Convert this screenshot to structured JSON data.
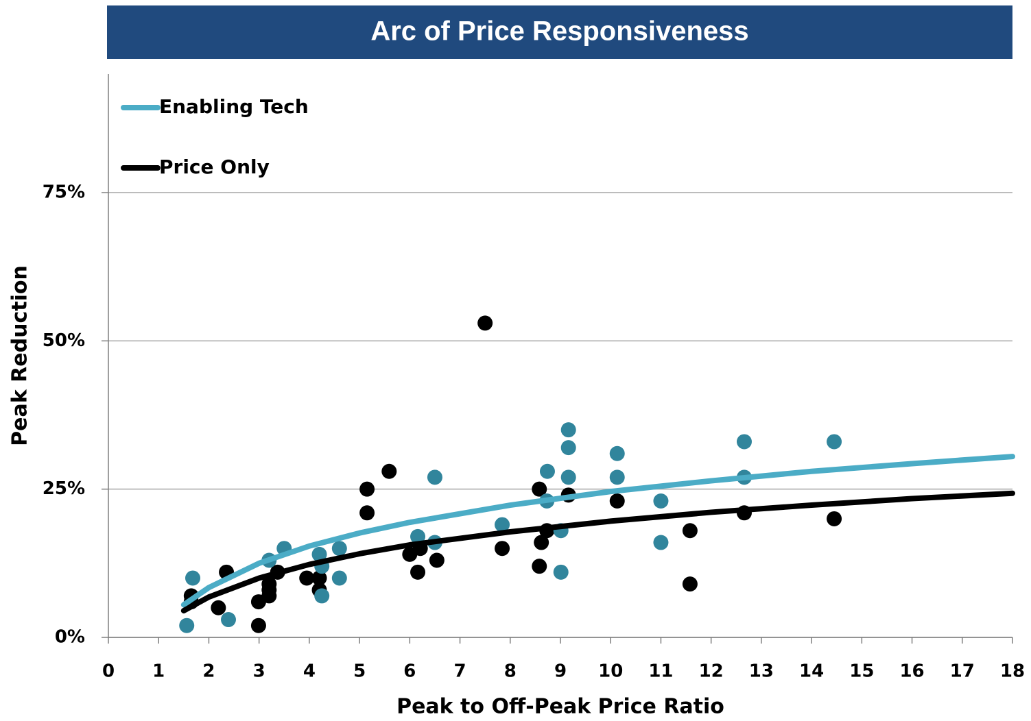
{
  "chart_data": {
    "type": "scatter",
    "title": "Arc of Price Responsiveness",
    "x_label": "Peak to Off-Peak Price Ratio",
    "y_label": "Peak Reduction",
    "xlim": [
      0,
      18
    ],
    "xticks": [
      0,
      1,
      2,
      3,
      4,
      5,
      6,
      7,
      8,
      9,
      10,
      11,
      12,
      13,
      14,
      15,
      16,
      17,
      18
    ],
    "ylim": [
      0,
      95
    ],
    "yticks": [
      {
        "value": 0,
        "label": "0%"
      },
      {
        "value": 25,
        "label": "25%"
      },
      {
        "value": 50,
        "label": "50%"
      },
      {
        "value": 75,
        "label": "75%"
      }
    ],
    "grid": true,
    "legend": "upper left",
    "series": [
      {
        "color": "#000000",
        "x": [
          1.65,
          1.65,
          2.19,
          2.35,
          2.99,
          2.99,
          3.2,
          3.2,
          3.2,
          3.37,
          3.95,
          4.2,
          4.2,
          5.15,
          5.15,
          5.59,
          6.0,
          6.21,
          6.16,
          6.54,
          7.5,
          7.84,
          8.58,
          8.62,
          8.58,
          8.73,
          9.16,
          10.13,
          11.58,
          11.58,
          12.66,
          14.45
        ],
        "y": [
          7,
          6,
          5,
          11,
          6,
          2,
          9,
          8,
          7,
          11,
          10,
          10,
          8,
          25,
          21,
          28,
          14,
          15,
          11,
          13,
          53,
          15,
          25,
          16,
          12,
          18,
          24,
          23,
          18,
          9,
          21,
          20
        ]
      },
      {
        "color": "#31859c",
        "x": [
          1.68,
          1.56,
          2.39,
          3.2,
          3.5,
          4.2,
          4.25,
          4.25,
          4.6,
          4.6,
          6.16,
          6.5,
          6.5,
          7.84,
          8.74,
          8.73,
          9.01,
          9.01,
          9.16,
          9.16,
          9.16,
          10.13,
          10.13,
          11.0,
          11.0,
          12.66,
          12.66,
          14.45
        ],
        "y": [
          10,
          2,
          3,
          13,
          15,
          14,
          12,
          7,
          15,
          10,
          17,
          16,
          27,
          19,
          28,
          23,
          18,
          11,
          35,
          32,
          27,
          31,
          27,
          23,
          16,
          33,
          27,
          33
        ]
      }
    ],
    "lines": [
      {
        "name": "Enabling Tech",
        "color": "#4bacc6",
        "x": [
          1.5,
          2,
          3,
          4,
          5,
          6,
          8,
          10,
          12,
          14,
          16,
          18
        ],
        "y": [
          5.5,
          8.4,
          12.5,
          15.4,
          17.6,
          19.4,
          22.3,
          24.6,
          26.4,
          28.0,
          29.3,
          30.5
        ]
      },
      {
        "name": "Price Only",
        "color": "#000000",
        "x": [
          1.5,
          2,
          3,
          4,
          5,
          6,
          8,
          10,
          12,
          14,
          16,
          18
        ],
        "y": [
          4.5,
          6.8,
          10.0,
          12.3,
          14.1,
          15.6,
          17.8,
          19.6,
          21.1,
          22.3,
          23.4,
          24.3
        ]
      }
    ]
  }
}
